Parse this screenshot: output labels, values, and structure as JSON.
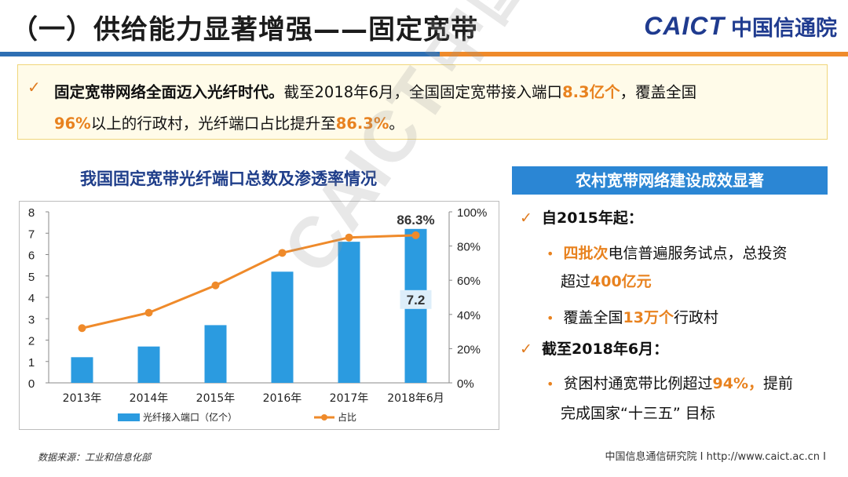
{
  "header": {
    "title": "（一）供给能力显著增强——固定宽带",
    "logo_en": "CAICT",
    "logo_cn": "中国信通院"
  },
  "banner": {
    "line1_bold": "固定宽带网络全面迈入光纤时代。",
    "line1_text_a": "截至2018年6月，全国固定宽带接入端口",
    "line1_hl": "8.3亿个",
    "line1_text_b": "，覆盖全国",
    "line2_hl_a": "96%",
    "line2_text_a": "以上的行政村，光纤端口占比提升至",
    "line2_hl_b": "86.3%",
    "line2_text_b": "。"
  },
  "chart_title": "我国固定宽带光纤端口总数及渗透率情况",
  "chart_data": {
    "type": "bar",
    "categories": [
      "2013年",
      "2014年",
      "2015年",
      "2016年",
      "2017年",
      "2018年6月"
    ],
    "series": [
      {
        "name": "光纤接入端口（亿个）",
        "type": "bar",
        "axis": "left",
        "values": [
          1.2,
          1.7,
          2.7,
          5.2,
          6.6,
          7.2
        ]
      },
      {
        "name": "占比",
        "type": "line",
        "axis": "right",
        "values": [
          32,
          41,
          57,
          76,
          85,
          86.3
        ]
      }
    ],
    "y_left": {
      "ylim": [
        0,
        8
      ],
      "ticks": [
        "0",
        "1",
        "2",
        "3",
        "4",
        "5",
        "6",
        "7",
        "8"
      ]
    },
    "y_right": {
      "ylim": [
        0,
        100
      ],
      "ticks": [
        "0%",
        "20%",
        "40%",
        "60%",
        "80%",
        "100%"
      ]
    },
    "data_labels": {
      "bar_last": "7.2",
      "line_last": "86.3%"
    },
    "legend": {
      "bar": "光纤接入端口（亿个）",
      "line": "占比",
      "position": "bottom"
    },
    "colors": {
      "bar": "#2b9be0",
      "line": "#ef8a2a"
    },
    "grid": false
  },
  "right_box": {
    "header": "农村宽带网络建设成效显著",
    "s1_title": "自2015年起：",
    "s1_b1_hl": "四批次",
    "s1_b1_text": "电信普遍服务试点，总投资",
    "s1_b1_cont_pre": "超过",
    "s1_b1_cont_hl": "400亿元",
    "s1_b2_pre": "覆盖全国",
    "s1_b2_hl": "13万个",
    "s1_b2_post": "行政村",
    "s2_title": "截至2018年6月：",
    "s2_b1_pre": "贫困村通宽带比例超过",
    "s2_b1_hl": "94%，",
    "s2_b1_post": "提前",
    "s2_b1_cont": "完成国家“十三五” 目标"
  },
  "footer": {
    "source": "数据来源：工业和信息化部",
    "org": "中国信息通信研究院   I   http://www.caict.ac.cn   I"
  },
  "watermark": {
    "en": "CAICT",
    "cn": "中国信通院"
  },
  "icons": {
    "check": "check-icon",
    "bullet": "bullet-dot-icon"
  }
}
